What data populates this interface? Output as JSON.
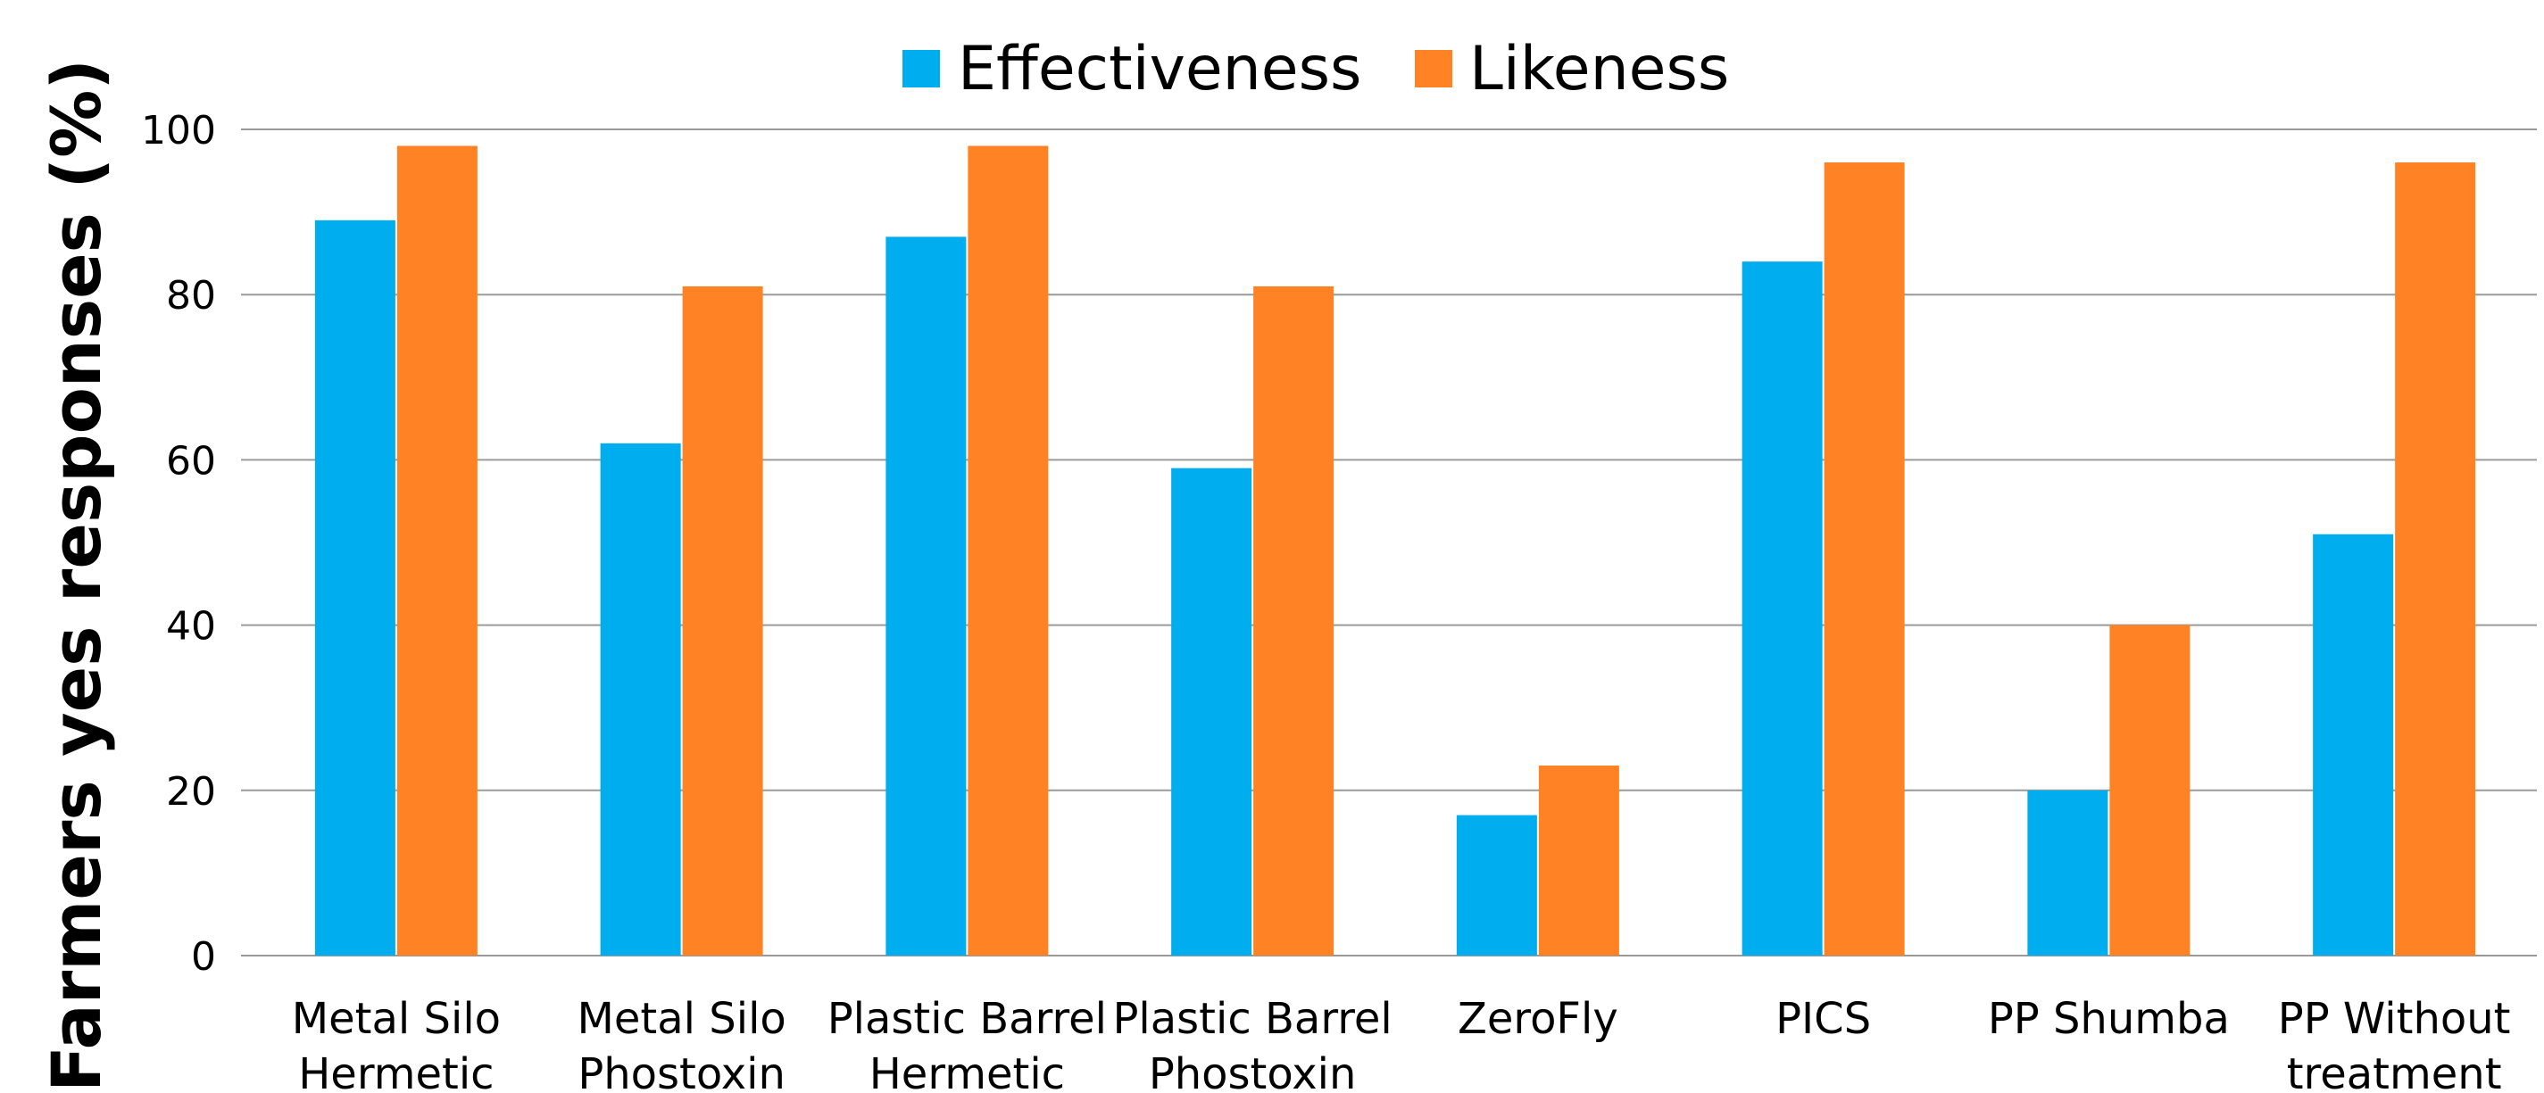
{
  "chart_data": {
    "type": "bar",
    "title": "",
    "xlabel": "",
    "ylabel": "Farmers yes responses (%)",
    "ylim": [
      0,
      100
    ],
    "yticks": [
      0,
      20,
      40,
      60,
      80,
      100
    ],
    "grid": true,
    "legend_position": "top-center",
    "categories": [
      [
        "Metal Silo",
        "Hermetic"
      ],
      [
        "Metal Silo",
        "Phostoxin"
      ],
      [
        "Plastic Barrel",
        "Hermetic"
      ],
      [
        "Plastic Barrel",
        "Phostoxin"
      ],
      [
        "ZeroFly"
      ],
      [
        "PICS"
      ],
      [
        "PP Shumba"
      ],
      [
        "PP Without",
        "treatment"
      ]
    ],
    "series": [
      {
        "name": "Effectiveness",
        "color": "#00AEEF",
        "values": [
          89,
          62,
          87,
          59,
          17,
          84,
          20,
          51
        ]
      },
      {
        "name": "Likeness",
        "color": "#FF8224",
        "values": [
          98,
          81,
          98,
          81,
          23,
          96,
          40,
          96
        ]
      }
    ]
  }
}
